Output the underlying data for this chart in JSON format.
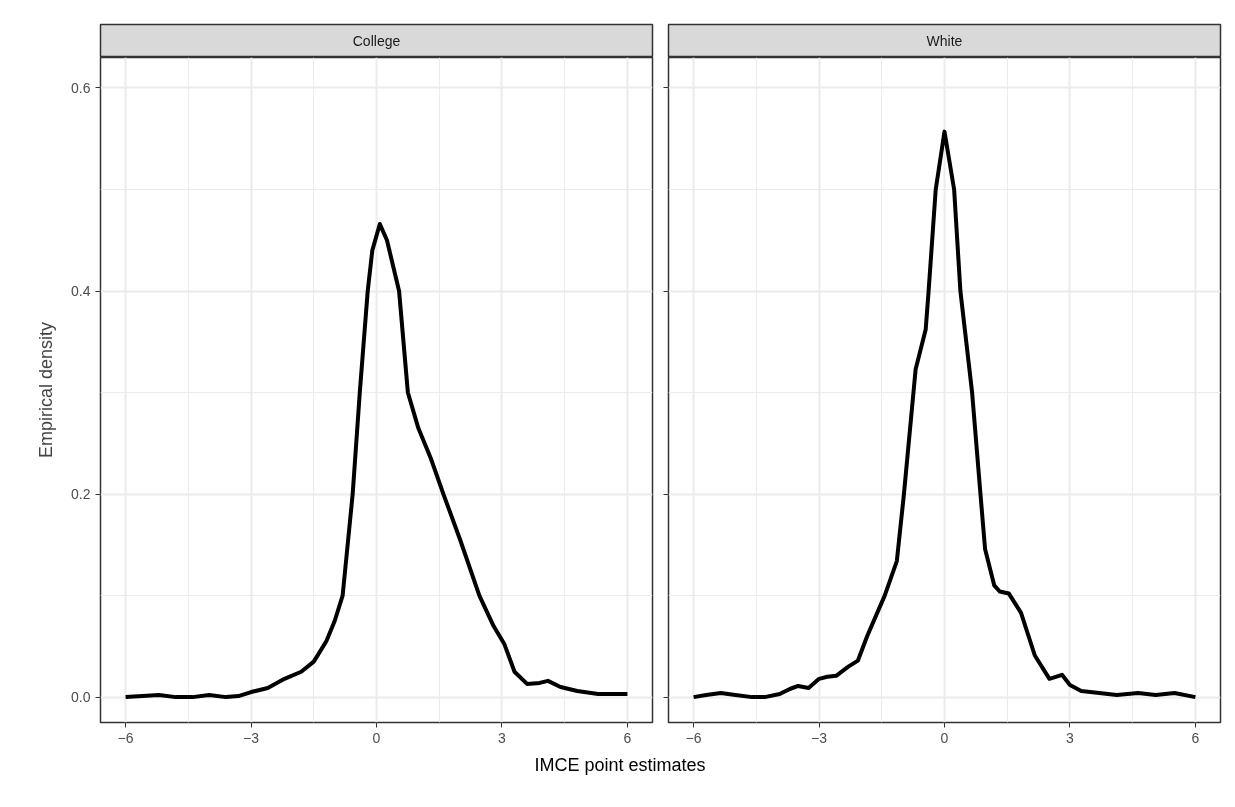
{
  "chart_data": [
    {
      "type": "line",
      "title": "College",
      "xlabel": "IMCE point estimates",
      "ylabel": "Empirical density",
      "grid": true,
      "line_style": "solid",
      "xlim": [
        -6.6,
        6.6
      ],
      "xticks": [
        -6,
        -3,
        0,
        3,
        6
      ],
      "ylim": [
        -0.025,
        0.63
      ],
      "yticks": [
        {
          "value": 0,
          "label": "0.0"
        },
        0.2,
        0.4,
        0.6
      ],
      "series": [
        {
          "color": "#000000",
          "x": [
            -6.0,
            -5.6,
            -5.2,
            -4.8,
            -4.4,
            -4.0,
            -3.6,
            -3.3,
            -3.0,
            -2.6,
            -2.2,
            -1.8,
            -1.5,
            -1.2,
            -1.0,
            -0.81,
            -0.57,
            -0.4,
            -0.21,
            -0.1,
            0.08,
            0.25,
            0.54,
            0.75,
            1.0,
            1.3,
            1.6,
            2.0,
            2.46,
            2.8,
            3.06,
            3.3,
            3.6,
            3.9,
            4.1,
            4.4,
            4.8,
            5.3,
            6.0
          ],
          "values": [
            0.0,
            0.001,
            0.002,
            0.0,
            0.0,
            0.002,
            0.0,
            0.001,
            0.005,
            0.009,
            0.018,
            0.025,
            0.035,
            0.055,
            0.075,
            0.1,
            0.2,
            0.3,
            0.4,
            0.44,
            0.466,
            0.45,
            0.4,
            0.3,
            0.265,
            0.235,
            0.2,
            0.155,
            0.1,
            0.07,
            0.052,
            0.025,
            0.013,
            0.014,
            0.016,
            0.01,
            0.006,
            0.003,
            0.003
          ]
        }
      ]
    },
    {
      "type": "line",
      "title": "White",
      "grid": true,
      "line_style": "solid",
      "tick_labels": "x",
      "xlim": [
        -6.6,
        6.6
      ],
      "xticks": [
        -6,
        -3,
        0,
        3,
        6
      ],
      "ylim": [
        -0.025,
        0.63
      ],
      "yticks": [
        0,
        0.2,
        0.4,
        0.6
      ],
      "series": [
        {
          "color": "#000000",
          "x": [
            -6.0,
            -5.7,
            -5.35,
            -5.0,
            -4.6,
            -4.3,
            -3.94,
            -3.7,
            -3.5,
            -3.25,
            -3.0,
            -2.8,
            -2.59,
            -2.3,
            -2.07,
            -1.85,
            -1.64,
            -1.43,
            -1.14,
            -0.97,
            -0.69,
            -0.45,
            -0.38,
            -0.21,
            0.0,
            0.23,
            0.38,
            0.66,
            0.86,
            0.97,
            1.19,
            1.32,
            1.54,
            1.83,
            2.16,
            2.51,
            2.81,
            3.0,
            3.27,
            3.7,
            4.12,
            4.63,
            5.05,
            5.5,
            6.0
          ],
          "values": [
            0.0,
            0.002,
            0.004,
            0.002,
            0.0,
            0.0,
            0.003,
            0.008,
            0.011,
            0.009,
            0.018,
            0.02,
            0.021,
            0.03,
            0.036,
            0.06,
            0.08,
            0.1,
            0.134,
            0.2,
            0.323,
            0.362,
            0.4,
            0.5,
            0.557,
            0.5,
            0.4,
            0.3,
            0.2,
            0.146,
            0.11,
            0.104,
            0.102,
            0.083,
            0.041,
            0.018,
            0.022,
            0.012,
            0.006,
            0.004,
            0.002,
            0.004,
            0.002,
            0.004,
            0.0
          ]
        }
      ]
    }
  ]
}
